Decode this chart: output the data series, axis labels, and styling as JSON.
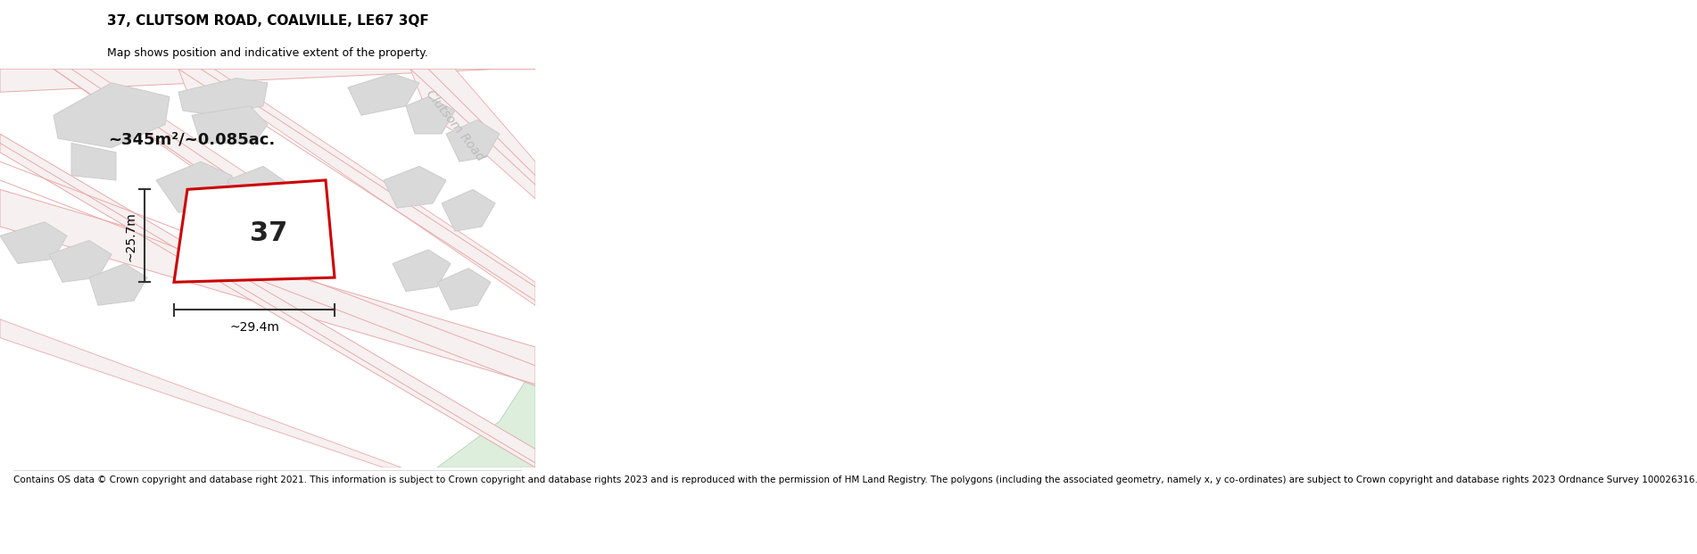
{
  "title": "37, CLUTSOM ROAD, COALVILLE, LE67 3QF",
  "subtitle": "Map shows position and indicative extent of the property.",
  "footer": "Contains OS data © Crown copyright and database right 2021. This information is subject to Crown copyright and database rights 2023 and is reproduced with the permission of HM Land Registry. The polygons (including the associated geometry, namely x, y co-ordinates) are subject to Crown copyright and database rights 2023 Ordnance Survey 100026316.",
  "area_label": "~345m²/~0.085ac.",
  "width_label": "~29.4m",
  "height_label": "~25.7m",
  "property_number": "37",
  "map_bg": "#efefef",
  "road_fill": "#f7f0f0",
  "road_edge": "#e8aaaa",
  "building_fill": "#d9d9d9",
  "building_edge": "#cccccc",
  "red_color": "#cc0000",
  "clutsom_road_label": "Clutsom Road",
  "title_fontsize": 11,
  "subtitle_fontsize": 9,
  "footer_fontsize": 7.5,
  "green_fill": "#ddeedd",
  "green_edge": "#aaccaa",
  "dim_color": "#333333",
  "label_fontsize": 13,
  "prop_fontsize": 22,
  "road_label_color": "#bbbbbb",
  "road_label_fontsize": 10
}
